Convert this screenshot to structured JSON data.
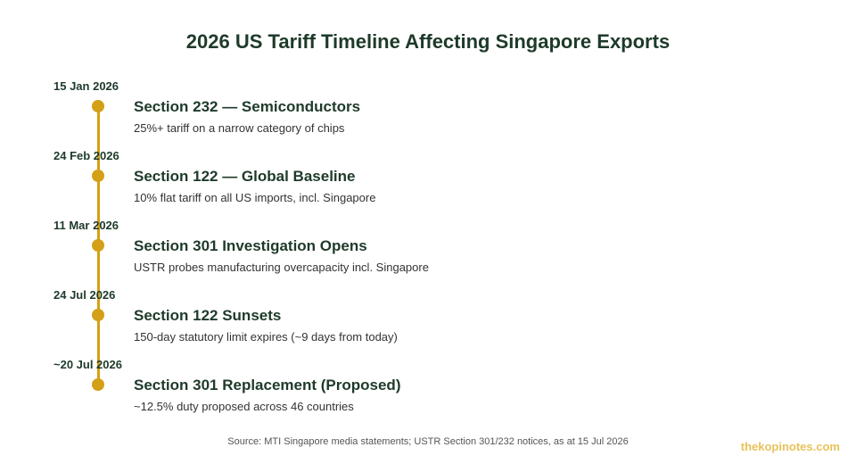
{
  "title": "2026 US Tariff Timeline Affecting Singapore Exports",
  "accent_color": "#d4a017",
  "text_color": "#1e3a2a",
  "events": [
    {
      "date": "15 Jan 2026",
      "heading": "Section 232 — Semiconductors",
      "desc": "25%+ tariff on a narrow category of chips"
    },
    {
      "date": "24 Feb 2026",
      "heading": "Section 122 — Global Baseline",
      "desc": "10% flat tariff on all US imports, incl. Singapore"
    },
    {
      "date": "11 Mar 2026",
      "heading": "Section 301 Investigation Opens",
      "desc": "USTR probes manufacturing overcapacity incl. Singapore"
    },
    {
      "date": "24 Jul 2026",
      "heading": "Section 122 Sunsets",
      "desc": "150-day statutory limit expires (~9 days from today)"
    },
    {
      "date": "~20 Jul 2026",
      "heading": "Section 301 Replacement (Proposed)",
      "desc": "~12.5% duty proposed across 46 countries"
    }
  ],
  "source": "Source: MTI Singapore media statements; USTR Section 301/232 notices, as at 15 Jul 2026",
  "watermark": "thekopinotes.com"
}
